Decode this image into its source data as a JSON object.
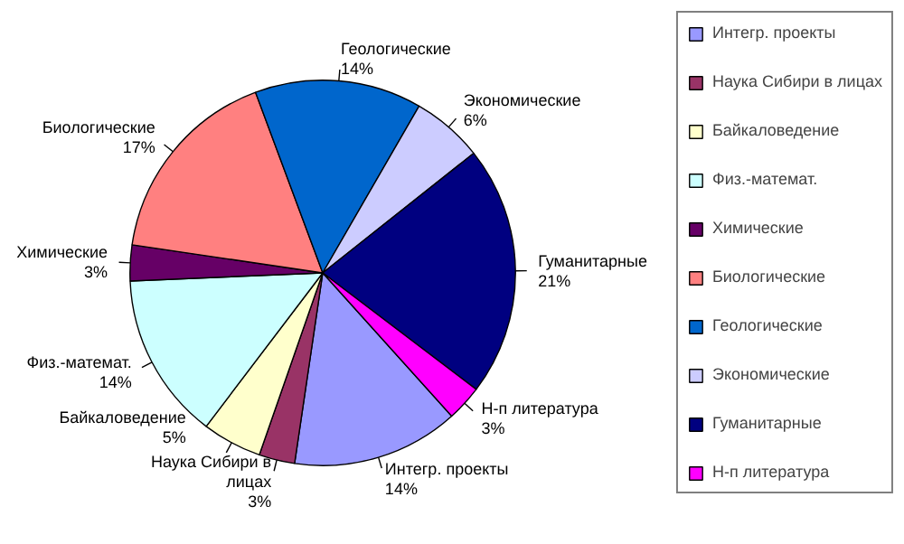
{
  "chart_data": {
    "type": "pie",
    "categories": [
      "Интегр. проекты",
      "Наука Сибири в лицах",
      "Байкаловедение",
      "Физ.-математ.",
      "Химические",
      "Биологические",
      "Геологические",
      "Экономические",
      "Гуманитарные",
      "Н-п литература"
    ],
    "values": [
      14,
      3,
      5,
      14,
      3,
      17,
      14,
      6,
      21,
      3
    ],
    "colors": [
      "#9999ff",
      "#993366",
      "#ffffcc",
      "#ccffff",
      "#660066",
      "#ff8080",
      "#0066cc",
      "#ccccff",
      "#000080",
      "#ff00ff"
    ],
    "value_labels": [
      "14%",
      "3%",
      "5%",
      "14%",
      "3%",
      "17%",
      "14%",
      "6%",
      "21%",
      "3%"
    ],
    "legend": "right"
  }
}
